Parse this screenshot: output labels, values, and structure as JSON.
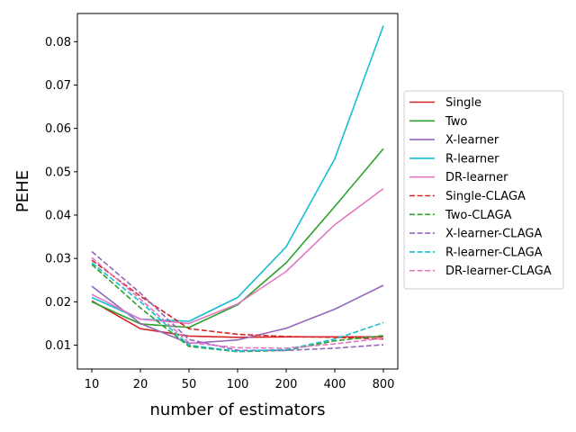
{
  "chart_data": {
    "type": "line",
    "title": "",
    "xlabel": "number of estimators",
    "ylabel": "PEHE",
    "categories": [
      "10",
      "20",
      "50",
      "100",
      "200",
      "400",
      "800"
    ],
    "ylim": [
      0.0045,
      0.0865
    ],
    "yticks": [
      0.01,
      0.02,
      0.03,
      0.04,
      0.05,
      0.06,
      0.07,
      0.08
    ],
    "ytick_labels": [
      "0.01",
      "0.02",
      "0.03",
      "0.04",
      "0.05",
      "0.06",
      "0.07",
      "0.08"
    ],
    "legend_position": "center-right-outside",
    "series": [
      {
        "name": "Single",
        "color": "#d62728",
        "dash": "solid",
        "values": [
          0.0202,
          0.0138,
          0.0121,
          0.0118,
          0.0119,
          0.0119,
          0.0119
        ]
      },
      {
        "name": "Two",
        "color": "#2ca02c",
        "dash": "solid",
        "values": [
          0.02,
          0.0149,
          0.0141,
          0.0193,
          0.029,
          0.042,
          0.0553
        ]
      },
      {
        "name": "X-learner",
        "color": "#9467bd",
        "dash": "solid",
        "values": [
          0.0236,
          0.015,
          0.0104,
          0.0112,
          0.0139,
          0.0183,
          0.0238
        ]
      },
      {
        "name": "R-learner",
        "color": "#17becf",
        "dash": "solid",
        "values": [
          0.021,
          0.016,
          0.0155,
          0.021,
          0.0327,
          0.053,
          0.0837
        ]
      },
      {
        "name": "DR-learner",
        "color": "#e377c2",
        "dash": "solid",
        "values": [
          0.0217,
          0.016,
          0.015,
          0.0195,
          0.027,
          0.0378,
          0.0461
        ]
      },
      {
        "name": "Single-CLAGA",
        "color": "#d62728",
        "dash": "dashed",
        "values": [
          0.0296,
          0.0213,
          0.0138,
          0.0125,
          0.012,
          0.0118,
          0.0114
        ]
      },
      {
        "name": "Two-CLAGA",
        "color": "#2ca02c",
        "dash": "dashed",
        "values": [
          0.0286,
          0.0186,
          0.0097,
          0.0085,
          0.0088,
          0.011,
          0.0122
        ]
      },
      {
        "name": "X-learner-CLAGA",
        "color": "#9467bd",
        "dash": "dashed",
        "values": [
          0.0316,
          0.022,
          0.0113,
          0.0088,
          0.0088,
          0.0093,
          0.0101
        ]
      },
      {
        "name": "R-learner-CLAGA",
        "color": "#17becf",
        "dash": "dashed",
        "values": [
          0.029,
          0.02,
          0.01,
          0.0086,
          0.009,
          0.0114,
          0.0152
        ]
      },
      {
        "name": "DR-learner-CLAGA",
        "color": "#e377c2",
        "dash": "dashed",
        "values": [
          0.0302,
          0.0206,
          0.0106,
          0.0094,
          0.0093,
          0.0103,
          0.0116
        ]
      }
    ]
  }
}
